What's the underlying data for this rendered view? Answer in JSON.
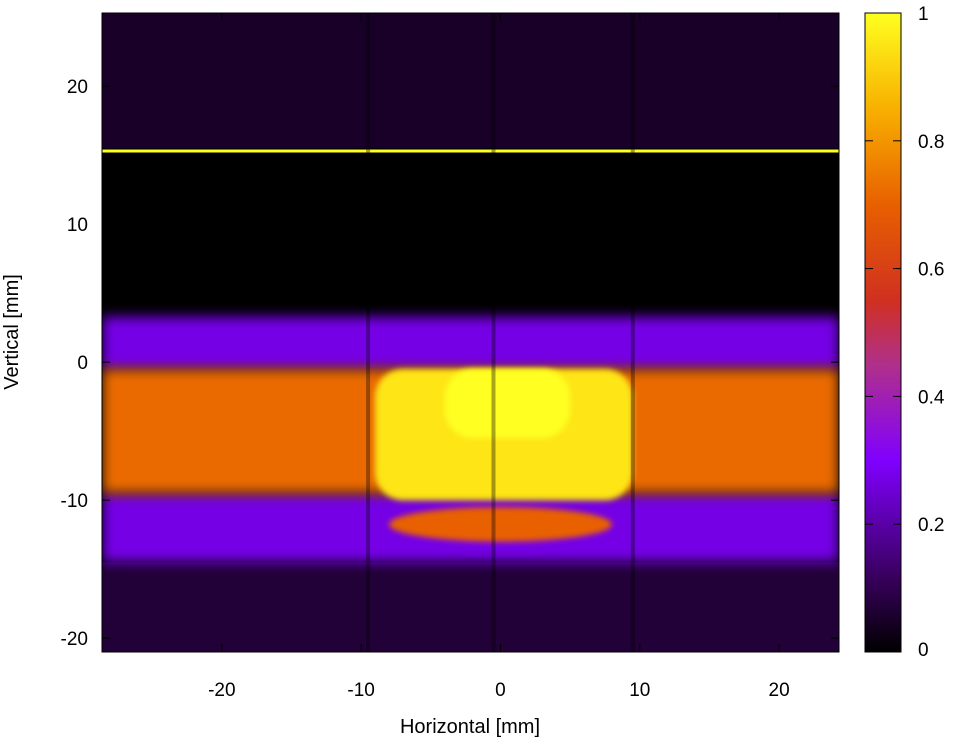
{
  "chart_data": {
    "type": "heatmap",
    "title": "",
    "xlabel": "Horizontal [mm]",
    "ylabel": "Vertical [mm]",
    "xlim": [
      -28.6,
      24.3
    ],
    "ylim": [
      -21,
      25.3
    ],
    "xticks": [
      -20,
      -10,
      0,
      10,
      20
    ],
    "yticks": [
      -20,
      -10,
      0,
      10,
      20
    ],
    "colorbar": {
      "range": [
        0,
        1
      ],
      "ticks": [
        0,
        0.2,
        0.4,
        0.6,
        0.8,
        1
      ],
      "tick_labels": [
        "0",
        "0.2",
        "0.4",
        "0.6",
        "0.8",
        "1"
      ],
      "palette": [
        "#000000",
        "#3a0060",
        "#8000ff",
        "#c0267a",
        "#e05000",
        "#f59000",
        "#ffc800",
        "#ffff20"
      ]
    },
    "regions": [
      {
        "name": "upper-background",
        "y_range": [
          15.5,
          25.3
        ],
        "value": 0.05
      },
      {
        "name": "edge-line",
        "y": 15.3,
        "value": 1.0
      },
      {
        "name": "gap",
        "y_range": [
          3.3,
          15.3
        ],
        "value": 0.0
      },
      {
        "name": "top-purple-band",
        "y_range": [
          -0.5,
          3.3
        ],
        "value": 0.27
      },
      {
        "name": "orange-band",
        "y_range": [
          -9.5,
          -0.5
        ],
        "value": 0.72
      },
      {
        "name": "yellow-core",
        "x_range": [
          -9,
          9.5
        ],
        "y_range": [
          -10,
          -0.5
        ],
        "value": 0.95
      },
      {
        "name": "bright-inner-blocks",
        "x_range": [
          -4,
          5
        ],
        "y_range": [
          -5.5,
          -0.5
        ],
        "value": 1.0
      },
      {
        "name": "orange-lower-lobe",
        "x_range": [
          -8,
          8
        ],
        "y_range": [
          -13,
          -10.5
        ],
        "value": 0.7
      },
      {
        "name": "bottom-purple-band",
        "y_range": [
          -14.5,
          -9.5
        ],
        "value": 0.27
      },
      {
        "name": "lower-background",
        "y_range": [
          -21,
          -14.5
        ],
        "value": 0.07
      }
    ]
  }
}
